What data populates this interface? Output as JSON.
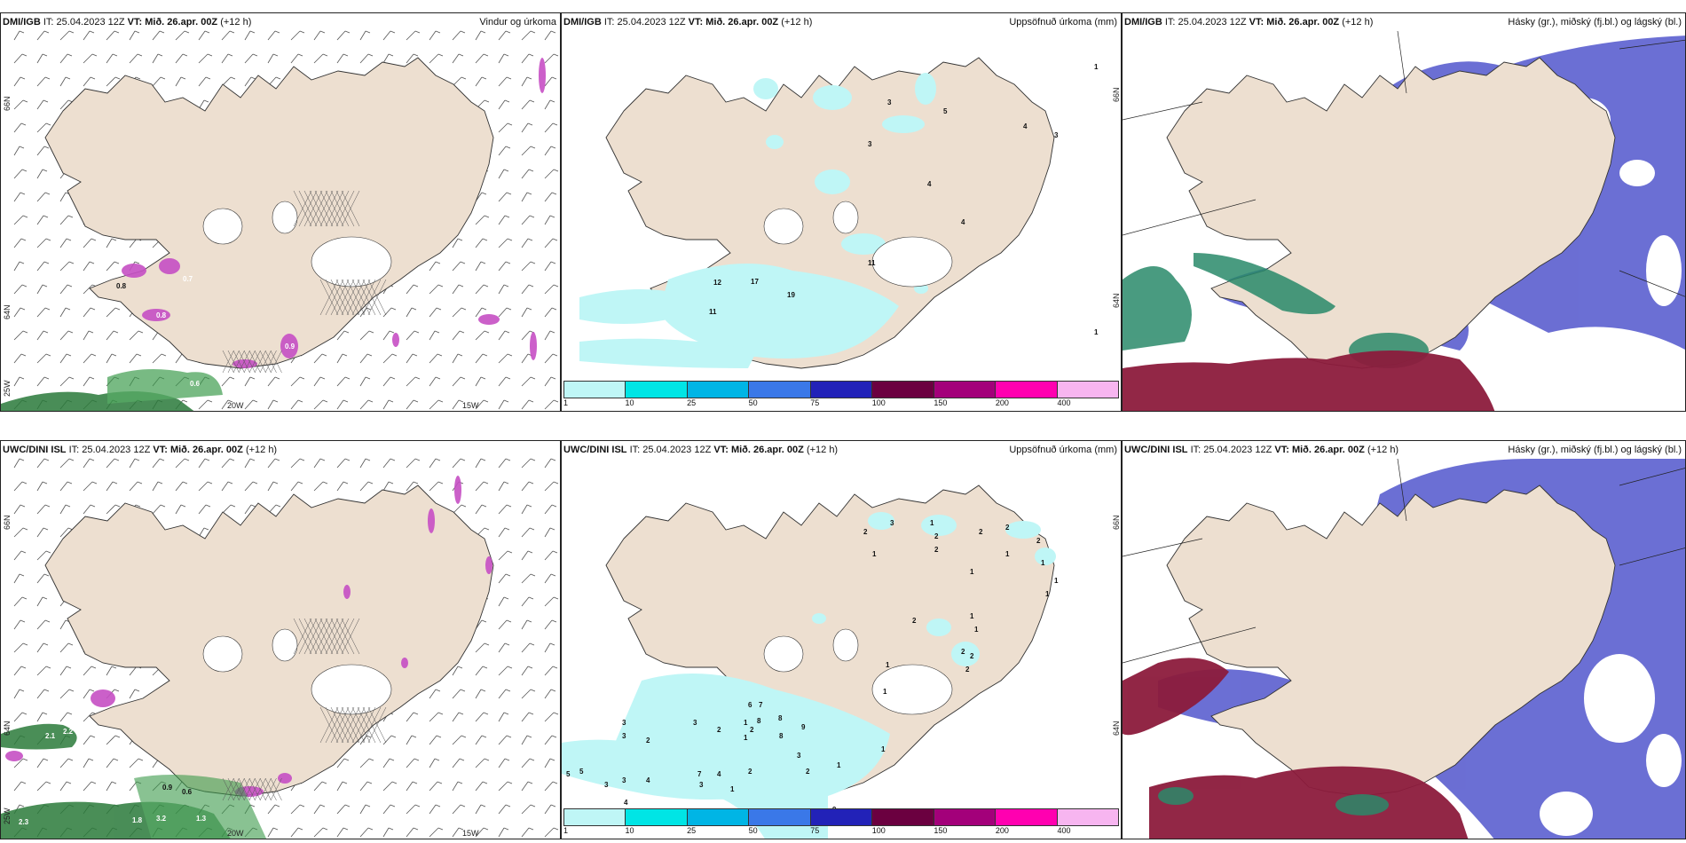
{
  "colors": {
    "land": "#eddfd0",
    "precip_light": "#bff6f6",
    "white_area": "#ffffff",
    "high_cloud": "#5b5fcf",
    "mid_cloud": "#2a8a6a",
    "low_cloud": "#8c1b3c",
    "magenta": "#c64fc4",
    "green_rain": "#3a8a4a"
  },
  "panels": [
    {
      "model": "DMI/IGB",
      "it_label": "IT:",
      "it": "25.04.2023 12Z",
      "vt_label": "VT:",
      "vt": "Mið. 26.apr. 00Z",
      "lead": "(+12 h)",
      "title": "Vindur og úrkoma"
    },
    {
      "model": "DMI/IGB",
      "it_label": "IT:",
      "it": "25.04.2023 12Z",
      "vt_label": "VT:",
      "vt": "Mið. 26.apr. 00Z",
      "lead": "(+12 h)",
      "title": "Uppsöfnuð úrkoma (mm)"
    },
    {
      "model": "DMI/IGB",
      "it_label": "IT:",
      "it": "25.04.2023 12Z",
      "vt_label": "VT:",
      "vt": "Mið. 26.apr. 00Z",
      "lead": "(+12 h)",
      "title": "Hásky (gr.), miðský (fj.bl.) og lágský (bl.)"
    },
    {
      "model": "UWC/DINI ISL",
      "it_label": "IT:",
      "it": "25.04.2023 12Z",
      "vt_label": "VT:",
      "vt": "Mið. 26.apr. 00Z",
      "lead": "(+12 h)",
      "title": ""
    },
    {
      "model": "UWC/DINI ISL",
      "it_label": "IT:",
      "it": "25.04.2023 12Z",
      "vt_label": "VT:",
      "vt": "Mið. 26.apr. 00Z",
      "lead": "(+12 h)",
      "title": "Uppsöfnuð úrkoma (mm)"
    },
    {
      "model": "UWC/DINI ISL",
      "it_label": "IT:",
      "it": "25.04.2023 12Z",
      "vt_label": "VT:",
      "vt": "Mið. 26.apr. 00Z",
      "lead": "(+12 h)",
      "title": "Hásky (gr.), miðský (fj.bl.) og lágský (bl.)"
    }
  ],
  "axis_labels": {
    "lat_66": "66N",
    "lat_64": "64N",
    "lon_25": "25W",
    "lon_20": "20W",
    "lon_15": "15W"
  },
  "colorbar": {
    "ticks": [
      "1",
      "10",
      "25",
      "50",
      "75",
      "100",
      "150",
      "200",
      "400"
    ],
    "colors": [
      "#bff6f6",
      "#00e5e5",
      "#00b5e5",
      "#3a78e8",
      "#2222b8",
      "#6b0040",
      "#a3007a",
      "#ff00b0",
      "#f7b5f0"
    ]
  },
  "top_precip_labels": [
    "3",
    "5",
    "4",
    "3",
    "3",
    "4",
    "4",
    "11",
    "12",
    "17",
    "19",
    "11",
    "1",
    "1"
  ],
  "bottom_precip_labels": [
    "2",
    "3",
    "1",
    "2",
    "1",
    "2",
    "2",
    "2",
    "1",
    "1",
    "2",
    "1",
    "1",
    "1",
    "2",
    "1",
    "1",
    "2",
    "2",
    "2",
    "1",
    "1",
    "3",
    "3",
    "3",
    "2",
    "2",
    "8",
    "8",
    "6",
    "7",
    "9",
    "8",
    "5",
    "3",
    "2",
    "3",
    "1",
    "1",
    "5",
    "4",
    "3",
    "7",
    "4",
    "4",
    "1",
    "3",
    "2",
    "2",
    "9",
    "1",
    "1"
  ],
  "wind_panel_values_top": [
    "0.8",
    "0.7",
    "0.8",
    "0.9",
    "0.6"
  ],
  "wind_panel_values_bottom": [
    "0.9",
    "0.6",
    "2.2",
    "2.1",
    "2.3",
    "1.8",
    "3.2",
    "1.3"
  ]
}
